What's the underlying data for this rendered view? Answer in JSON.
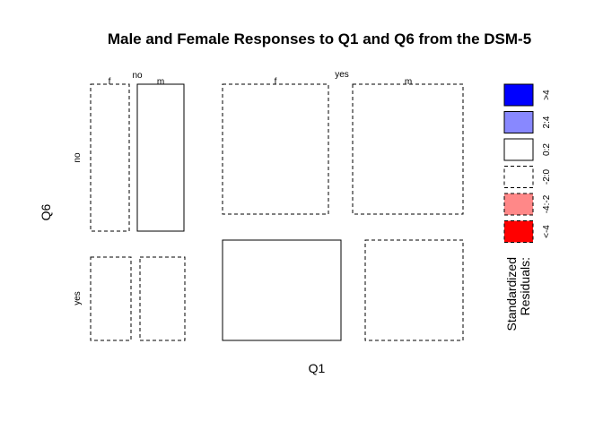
{
  "chart_data": {
    "type": "mosaic",
    "title": "Male and Female Responses to Q1 and Q6 from the DSM-5",
    "xlabel": "Q1",
    "ylabel": "Q6",
    "q1_levels": [
      "no",
      "yes"
    ],
    "q6_levels": [
      "no",
      "yes"
    ],
    "sex_levels": [
      "f",
      "m"
    ],
    "cells": [
      {
        "q1": "no",
        "q6": "no",
        "sex": "f",
        "residual_class": "-2:0"
      },
      {
        "q1": "no",
        "q6": "no",
        "sex": "m",
        "residual_class": "0:2"
      },
      {
        "q1": "yes",
        "q6": "no",
        "sex": "f",
        "residual_class": "-2:0"
      },
      {
        "q1": "yes",
        "q6": "no",
        "sex": "m",
        "residual_class": "-2:0"
      },
      {
        "q1": "no",
        "q6": "yes",
        "sex": "f",
        "residual_class": "-2:0"
      },
      {
        "q1": "no",
        "q6": "yes",
        "sex": "m",
        "residual_class": "-2:0"
      },
      {
        "q1": "yes",
        "q6": "yes",
        "sex": "f",
        "residual_class": "0:2"
      },
      {
        "q1": "yes",
        "q6": "yes",
        "sex": "m",
        "residual_class": "-2:0"
      }
    ],
    "legend": {
      "title_line1": "Standardized",
      "title_line2": "Residuals:",
      "placement": "right",
      "entries": [
        {
          "label": ">4",
          "fill": "#0000FF",
          "dashed": false
        },
        {
          "label": "2:4",
          "fill": "#8888FF",
          "dashed": false
        },
        {
          "label": "0:2",
          "fill": "#FFFFFF",
          "dashed": false
        },
        {
          "label": "-2:0",
          "fill": "#FFFFFF",
          "dashed": true
        },
        {
          "label": "-4:-2",
          "fill": "#FF8888",
          "dashed": true
        },
        {
          "label": "<-4",
          "fill": "#FF0000",
          "dashed": true
        }
      ]
    }
  }
}
